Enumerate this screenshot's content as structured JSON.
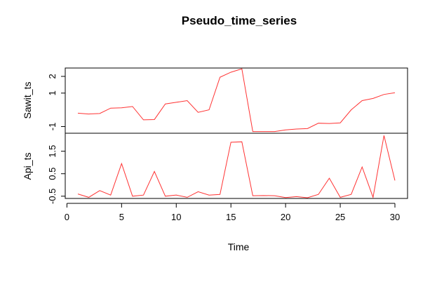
{
  "chart_data": {
    "type": "line",
    "title": "Pseudo_time_series",
    "xlabel": "Time",
    "x": [
      1,
      2,
      3,
      4,
      5,
      6,
      7,
      8,
      9,
      10,
      11,
      12,
      13,
      14,
      15,
      16,
      17,
      18,
      19,
      20,
      21,
      22,
      23,
      24,
      25,
      26,
      27,
      28,
      29,
      30
    ],
    "xlim": [
      1,
      30
    ],
    "x_ticks": [
      0,
      5,
      10,
      15,
      20,
      25,
      30
    ],
    "line_color": "#ff3333",
    "panels": [
      {
        "name": "Sawit_ts",
        "ylabel": "Sawit_ts",
        "ylim": [
          -1.4,
          2.5
        ],
        "y_ticks": [
          -1,
          1,
          2
        ],
        "y_tick_labels": [
          "-1",
          "1",
          "2"
        ],
        "values": [
          -0.2,
          -0.25,
          -0.22,
          0.1,
          0.12,
          0.2,
          -0.6,
          -0.58,
          0.35,
          0.45,
          0.55,
          -0.15,
          0.0,
          1.95,
          2.25,
          2.45,
          -1.3,
          -1.3,
          -1.3,
          -1.2,
          -1.15,
          -1.12,
          -0.8,
          -0.82,
          -0.78,
          0.0,
          0.55,
          0.68,
          0.92,
          1.02
        ]
      },
      {
        "name": "Api_ts",
        "ylabel": "Api_ts",
        "ylim": [
          -0.6,
          2.3
        ],
        "y_ticks": [
          -0.5,
          0.5,
          1.5
        ],
        "y_tick_labels": [
          "-0.5",
          "0.5",
          "1.5"
        ],
        "values": [
          -0.4,
          -0.55,
          -0.25,
          -0.45,
          0.95,
          -0.5,
          -0.45,
          0.6,
          -0.5,
          -0.45,
          -0.55,
          -0.3,
          -0.45,
          -0.42,
          1.9,
          1.92,
          -0.48,
          -0.47,
          -0.48,
          -0.56,
          -0.52,
          -0.57,
          -0.42,
          0.3,
          -0.55,
          -0.42,
          0.8,
          -0.55,
          2.2,
          0.2
        ]
      }
    ]
  }
}
